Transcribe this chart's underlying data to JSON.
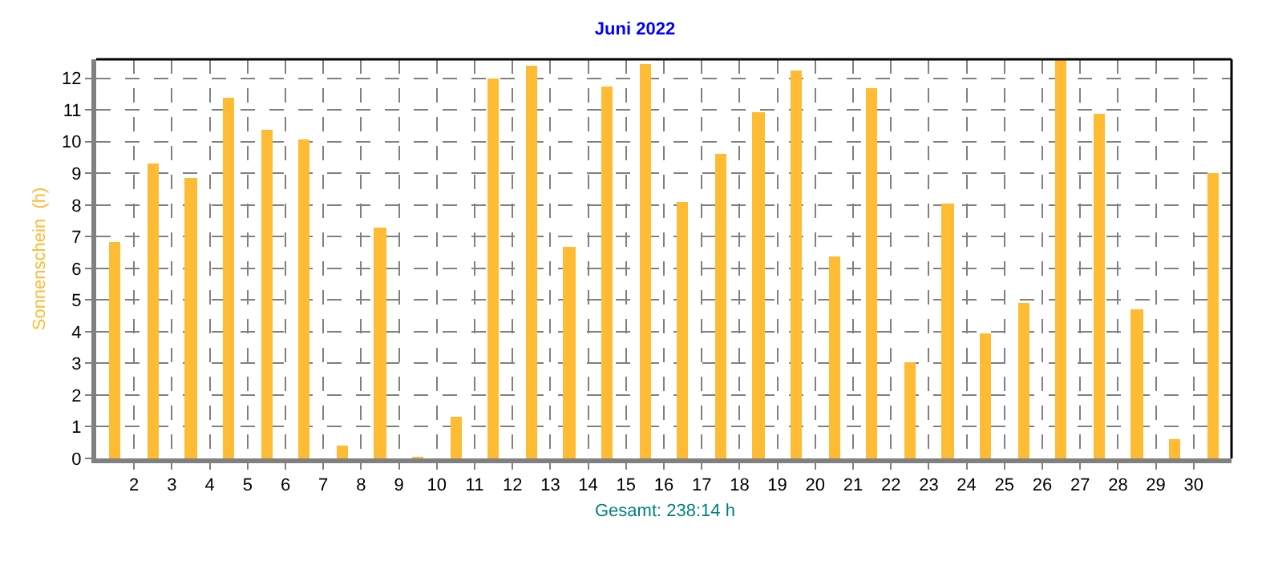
{
  "chart_data": {
    "type": "bar",
    "title": "Juni 2022",
    "ylabel": "Sonnenschein  (h)",
    "annotations": [
      "Gesamt: 238:14 h"
    ],
    "x": [
      1.5,
      2.5,
      3.5,
      4.5,
      5.5,
      6.5,
      7.5,
      8.5,
      9.5,
      10.5,
      11.5,
      12.5,
      13.5,
      14.5,
      15.5,
      16.5,
      17.5,
      18.5,
      19.5,
      20.5,
      21.5,
      22.5,
      23.5,
      24.5,
      25.5,
      26.5,
      27.5,
      28.5,
      29.5,
      30.5
    ],
    "values": [
      6.85,
      9.33,
      8.84,
      11.41,
      10.35,
      10.09,
      0.42,
      7.31,
      0.05,
      1.3,
      12.0,
      12.42,
      6.7,
      11.76,
      12.47,
      8.12,
      9.59,
      10.95,
      12.27,
      6.4,
      11.71,
      3.05,
      8.07,
      3.97,
      4.93,
      12.6,
      10.9,
      4.73,
      0.62,
      9.03
    ],
    "color": "#ffbb33",
    "xlim": [
      1,
      31
    ],
    "xticks": [
      2,
      3,
      4,
      5,
      6,
      7,
      8,
      9,
      10,
      11,
      12,
      13,
      14,
      15,
      16,
      17,
      18,
      19,
      20,
      21,
      22,
      23,
      24,
      25,
      26,
      27,
      28,
      29,
      30
    ],
    "ylim": [
      0,
      12.6
    ],
    "yticks": [
      0,
      1,
      2,
      3,
      4,
      5,
      6,
      7,
      8,
      9,
      10,
      11,
      12
    ],
    "grid": true,
    "legend": false
  }
}
